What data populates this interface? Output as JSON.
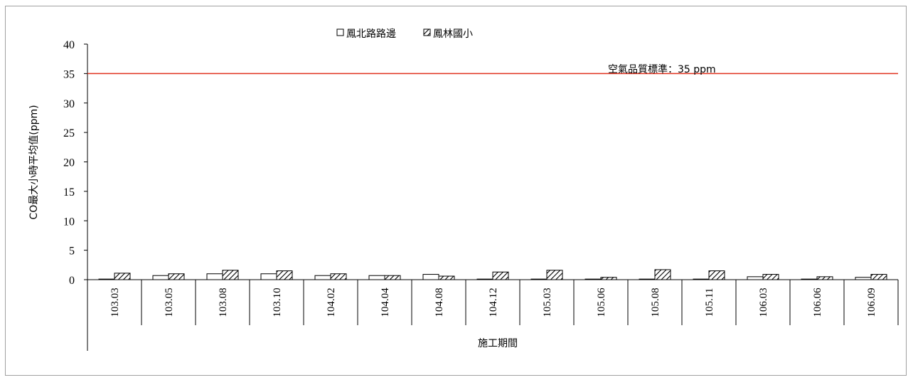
{
  "chart_data": {
    "type": "bar",
    "ylabel": "CO最大小時平均值(ppm)",
    "xlabel": "施工期間",
    "ylim": [
      0,
      40
    ],
    "yticks": [
      0,
      5,
      10,
      15,
      20,
      25,
      30,
      35,
      40
    ],
    "categories": [
      "103.03",
      "103.05",
      "103.08",
      "103.10",
      "104.02",
      "104.04",
      "104.08",
      "104.12",
      "105.03",
      "105.06",
      "105.08",
      "105.11",
      "106.03",
      "106.06",
      "106.09"
    ],
    "series": [
      {
        "name": "鳳北路路邊",
        "fill": "plain",
        "values": [
          0.1,
          0.7,
          1.0,
          1.0,
          0.7,
          0.7,
          0.9,
          0.1,
          0.1,
          0.1,
          0.1,
          0.1,
          0.5,
          0.1,
          0.4
        ]
      },
      {
        "name": "鳳林國小",
        "fill": "hatched",
        "values": [
          1.1,
          1.0,
          1.6,
          1.5,
          1.0,
          0.7,
          0.6,
          1.3,
          1.6,
          0.4,
          1.7,
          1.5,
          0.9,
          0.5,
          0.9
        ]
      }
    ],
    "reference_line": {
      "value": 35,
      "label": "空氣品質標準：35 ppm",
      "color": "#e0301e"
    },
    "legend_position": "top-center",
    "grid": false
  }
}
